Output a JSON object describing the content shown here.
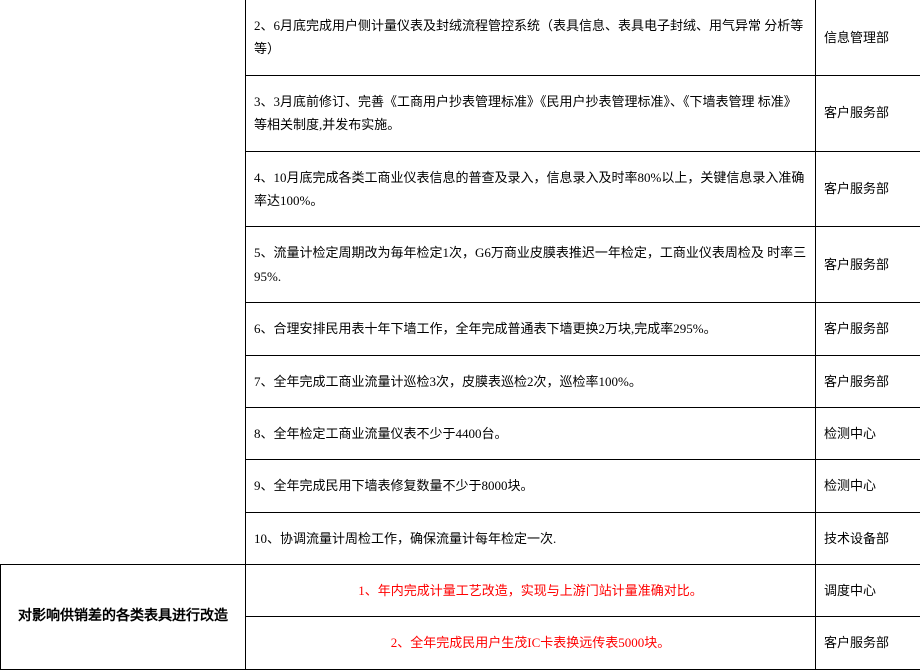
{
  "rows": [
    {
      "task": "2、6月底完成用户侧计量仪表及封绒流程管控系统（表具信息、表具电子封绒、用气异常 分析等等）",
      "dept": "信息管理部",
      "red": false
    },
    {
      "task": "3、3月底前修订、完善《工商用户抄表管理标准》《民用户抄表管理标准》、《下墙表管理 标准》等相关制度,并发布实施。",
      "dept": "客户服务部",
      "red": false
    },
    {
      "task": "4、10月底完成各类工商业仪表信息的普查及录入，信息录入及时率80%以上，关键信息录入准确率达100%。",
      "dept": "客户服务部",
      "red": false
    },
    {
      "task": "5、流量计检定周期改为毎年检定1次，G6万商业皮膜表推迟一年检定，工商业仪表周检及 时率三95%.",
      "dept": "客户服务部",
      "red": false
    },
    {
      "task": "6、合理安排民用表十年下墙工作，全年完成普通表下墙更换2万块,完成率295%。",
      "dept": "客户服务部",
      "red": false
    },
    {
      "task": "7、全年完成工商业流量计巡检3次，皮膜表巡检2次，巡检率100%。",
      "dept": "客户服务部",
      "red": false
    },
    {
      "task": "8、全年检定工商业流量仪表不少于4400台。",
      "dept": "检测中心",
      "red": false
    },
    {
      "task": "9、全年完成民用下墙表修复数量不少于8000块。",
      "dept": "检测中心",
      "red": false
    },
    {
      "task": "10、协调流量计周检工作，确保流量计每年检定一次.",
      "dept": "技术设备部",
      "red": false
    }
  ],
  "sectionHeader": "对影响供销差的各类表具进行改造",
  "sectionRows": [
    {
      "task": "1、年内完成计量工艺改造，实现与上游门站计量准确对比。",
      "dept": "调度中心",
      "red": true
    },
    {
      "task": "2、全年完成民用户生茂IC卡表换远传表5000块。",
      "dept": "客户服务部",
      "red": true
    }
  ]
}
